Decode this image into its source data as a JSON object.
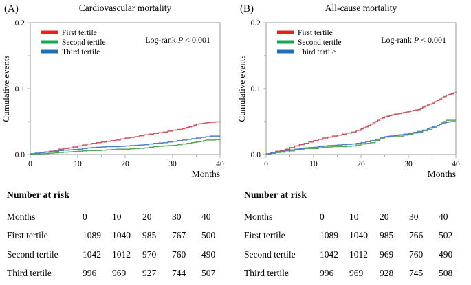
{
  "figure": {
    "background": "#ffffff",
    "frame_color": "#a8a8a8",
    "text_color": "#000000"
  },
  "chart_data": [
    {
      "type": "line",
      "panel_label": "(A)",
      "title": "Cardiovascular mortality",
      "xlabel": "Months",
      "ylabel": "Cumulative events",
      "xlim": [
        0,
        40
      ],
      "ylim": [
        0,
        0.2
      ],
      "xticks": [
        0,
        10,
        20,
        30,
        40
      ],
      "xtick_labels": [
        "0",
        "10",
        "20",
        "30",
        "40"
      ],
      "xticks_minor": [
        5,
        15,
        25,
        35
      ],
      "yticks": [
        0,
        0.1,
        0.2
      ],
      "ytick_labels": [
        "0.0",
        "0.1",
        "0.2"
      ],
      "yticks_minor": [
        0.05,
        0.15
      ],
      "grid": false,
      "legend_position": "upper-left",
      "annotation": {
        "text_before": "Log-rank ",
        "italic": "P",
        "text_after": " < 0.001"
      },
      "series": [
        {
          "name": "First tertile",
          "swatch_color": "#e8211d",
          "line_color": "#c8545e",
          "x": [
            0,
            2,
            4,
            6,
            8,
            10,
            12,
            14,
            16,
            18,
            20,
            22,
            24,
            26,
            28,
            30,
            32,
            33,
            34,
            35,
            36,
            37,
            38,
            40
          ],
          "y": [
            0.001,
            0.003,
            0.005,
            0.008,
            0.01,
            0.013,
            0.016,
            0.018,
            0.02,
            0.022,
            0.025,
            0.027,
            0.03,
            0.032,
            0.034,
            0.037,
            0.039,
            0.041,
            0.043,
            0.046,
            0.047,
            0.048,
            0.049,
            0.05
          ]
        },
        {
          "name": "Second tertile",
          "swatch_color": "#18a74e",
          "line_color": "#57a957",
          "x": [
            0,
            2,
            4,
            6,
            8,
            10,
            12,
            14,
            16,
            18,
            20,
            22,
            24,
            26,
            28,
            30,
            32,
            34,
            35,
            36,
            37,
            38,
            40
          ],
          "y": [
            0.0,
            0.001,
            0.002,
            0.003,
            0.004,
            0.005,
            0.006,
            0.006,
            0.007,
            0.008,
            0.008,
            0.009,
            0.01,
            0.012,
            0.013,
            0.014,
            0.016,
            0.018,
            0.019,
            0.02,
            0.022,
            0.022,
            0.023
          ]
        },
        {
          "name": "Third tertile",
          "swatch_color": "#1d70bb",
          "line_color": "#4f7fc8",
          "x": [
            0,
            2,
            4,
            6,
            8,
            10,
            12,
            14,
            16,
            18,
            20,
            22,
            24,
            26,
            28,
            30,
            32,
            34,
            36,
            38,
            40
          ],
          "y": [
            0.001,
            0.003,
            0.004,
            0.006,
            0.007,
            0.008,
            0.01,
            0.011,
            0.012,
            0.012,
            0.013,
            0.014,
            0.015,
            0.017,
            0.018,
            0.02,
            0.022,
            0.024,
            0.026,
            0.028,
            0.028
          ]
        }
      ],
      "number_at_risk": {
        "title": "Number at risk",
        "row_header": "Months",
        "times": [
          "0",
          "10",
          "20",
          "30",
          "40"
        ],
        "rows": [
          {
            "name": "First tertile",
            "values": [
              "1089",
              "1040",
              "985",
              "767",
              "500"
            ]
          },
          {
            "name": "Second tertile",
            "values": [
              "1042",
              "1012",
              "970",
              "760",
              "490"
            ]
          },
          {
            "name": "Third tertile",
            "values": [
              "996",
              "969",
              "927",
              "744",
              "507"
            ]
          }
        ]
      }
    },
    {
      "type": "line",
      "panel_label": "(B)",
      "title": "All-cause mortality",
      "xlabel": "Months",
      "ylabel": "Cumulative events",
      "xlim": [
        0,
        40
      ],
      "ylim": [
        0,
        0.2
      ],
      "xticks": [
        0,
        10,
        20,
        30,
        40
      ],
      "xtick_labels": [
        "0",
        "10",
        "20",
        "30",
        "40"
      ],
      "xticks_minor": [
        5,
        15,
        25,
        35
      ],
      "yticks": [
        0,
        0.1,
        0.2
      ],
      "ytick_labels": [
        "0.0",
        "0.1",
        "0.2"
      ],
      "yticks_minor": [
        0.05,
        0.15
      ],
      "grid": false,
      "legend_position": "upper-left",
      "annotation": {
        "text_before": "Log-rank ",
        "italic": "P",
        "text_after": " < 0.001"
      },
      "series": [
        {
          "name": "First tertile",
          "swatch_color": "#e8211d",
          "line_color": "#c8545e",
          "x": [
            0,
            2,
            4,
            6,
            8,
            10,
            12,
            14,
            16,
            18,
            20,
            21,
            22,
            23,
            24,
            25,
            26,
            27,
            28,
            29,
            30,
            31,
            32,
            33,
            34,
            35,
            36,
            37,
            38,
            39,
            40
          ],
          "y": [
            0.001,
            0.005,
            0.008,
            0.013,
            0.017,
            0.021,
            0.025,
            0.028,
            0.031,
            0.034,
            0.039,
            0.042,
            0.046,
            0.05,
            0.054,
            0.057,
            0.059,
            0.061,
            0.062,
            0.064,
            0.065,
            0.067,
            0.068,
            0.072,
            0.075,
            0.078,
            0.082,
            0.086,
            0.09,
            0.092,
            0.095
          ]
        },
        {
          "name": "Second tertile",
          "swatch_color": "#18a74e",
          "line_color": "#57a957",
          "x": [
            0,
            2,
            4,
            6,
            8,
            10,
            12,
            14,
            16,
            18,
            20,
            22,
            24,
            26,
            28,
            30,
            32,
            34,
            36,
            37,
            38,
            40
          ],
          "y": [
            0.001,
            0.003,
            0.004,
            0.007,
            0.009,
            0.009,
            0.011,
            0.012,
            0.012,
            0.013,
            0.016,
            0.018,
            0.025,
            0.028,
            0.028,
            0.031,
            0.034,
            0.038,
            0.044,
            0.048,
            0.052,
            0.052
          ]
        },
        {
          "name": "Third tertile",
          "swatch_color": "#1d70bb",
          "line_color": "#4f7fc8",
          "x": [
            0,
            2,
            4,
            6,
            8,
            10,
            12,
            14,
            16,
            18,
            20,
            22,
            24,
            25,
            26,
            28,
            30,
            32,
            34,
            35,
            36,
            37,
            38,
            39,
            40
          ],
          "y": [
            0.001,
            0.004,
            0.006,
            0.008,
            0.01,
            0.011,
            0.013,
            0.014,
            0.015,
            0.016,
            0.018,
            0.021,
            0.025,
            0.027,
            0.028,
            0.03,
            0.032,
            0.035,
            0.039,
            0.042,
            0.044,
            0.047,
            0.049,
            0.05,
            0.05
          ]
        }
      ],
      "number_at_risk": {
        "title": "Number at risk",
        "row_header": "Months",
        "times": [
          "0",
          "10",
          "20",
          "30",
          "40"
        ],
        "rows": [
          {
            "name": "First tertile",
            "values": [
              "1089",
              "1040",
              "985",
              "766",
              "502"
            ]
          },
          {
            "name": "Second tertile",
            "values": [
              "1042",
              "1012",
              "969",
              "760",
              "490"
            ]
          },
          {
            "name": "Third tertile",
            "values": [
              "996",
              "969",
              "928",
              "745",
              "508"
            ]
          }
        ]
      }
    }
  ]
}
